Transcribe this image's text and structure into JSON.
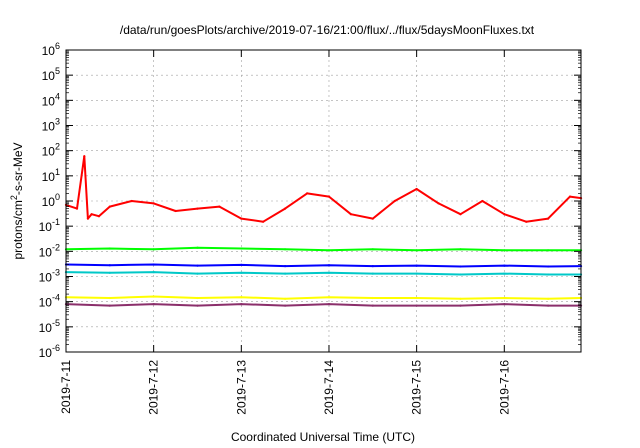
{
  "chart_data": {
    "type": "line",
    "title": "/data/run/goesPlots/archive/2019-07-16/21:00/flux/../flux/5daysMoonFluxes.txt",
    "xlabel": "Coordinated Universal Time (UTC)",
    "ylabel_main": "protons/cm",
    "ylabel_sup": "2",
    "ylabel_rest": "-s-sr-MeV",
    "y_scale": "log",
    "ylim": [
      1e-06,
      1000000.0
    ],
    "xlim": [
      "2019-07-11 00:00",
      "2019-07-16 21:00"
    ],
    "y_ticks": [
      {
        "exp": -6,
        "base": "10",
        "sup": "-6"
      },
      {
        "exp": -5,
        "base": "10",
        "sup": "-5"
      },
      {
        "exp": -4,
        "base": "10",
        "sup": "-4"
      },
      {
        "exp": -3,
        "base": "10",
        "sup": "-3"
      },
      {
        "exp": -2,
        "base": "10",
        "sup": "-2"
      },
      {
        "exp": -1,
        "base": "10",
        "sup": "-1"
      },
      {
        "exp": 0,
        "base": "10",
        "sup": "0"
      },
      {
        "exp": 1,
        "base": "10",
        "sup": "1"
      },
      {
        "exp": 2,
        "base": "10",
        "sup": "2"
      },
      {
        "exp": 3,
        "base": "10",
        "sup": "3"
      },
      {
        "exp": 4,
        "base": "10",
        "sup": "4"
      },
      {
        "exp": 5,
        "base": "10",
        "sup": "5"
      },
      {
        "exp": 6,
        "base": "10",
        "sup": "6"
      }
    ],
    "x_ticks": [
      {
        "x": "2019-07-11 00:00",
        "label": "2019-7-11"
      },
      {
        "x": "2019-07-12 00:00",
        "label": "2019-7-12"
      },
      {
        "x": "2019-07-13 00:00",
        "label": "2019-7-13"
      },
      {
        "x": "2019-07-14 00:00",
        "label": "2019-7-14"
      },
      {
        "x": "2019-07-15 00:00",
        "label": "2019-7-15"
      },
      {
        "x": "2019-07-16 00:00",
        "label": "2019-7-16"
      }
    ],
    "grid": true,
    "legend": "none",
    "series": [
      {
        "color": "#ff0000",
        "x": [
          "2019-07-11 00:00",
          "2019-07-11 03:00",
          "2019-07-11 05:00",
          "2019-07-11 06:00",
          "2019-07-11 07:00",
          "2019-07-11 09:00",
          "2019-07-11 12:00",
          "2019-07-11 18:00",
          "2019-07-12 00:00",
          "2019-07-12 06:00",
          "2019-07-12 12:00",
          "2019-07-12 18:00",
          "2019-07-13 00:00",
          "2019-07-13 06:00",
          "2019-07-13 12:00",
          "2019-07-13 18:00",
          "2019-07-14 00:00",
          "2019-07-14 06:00",
          "2019-07-14 12:00",
          "2019-07-14 18:00",
          "2019-07-15 00:00",
          "2019-07-15 06:00",
          "2019-07-15 12:00",
          "2019-07-15 18:00",
          "2019-07-16 00:00",
          "2019-07-16 06:00",
          "2019-07-16 12:00",
          "2019-07-16 18:00",
          "2019-07-16 21:00"
        ],
        "values": [
          0.7,
          0.5,
          60,
          0.2,
          0.3,
          0.25,
          0.6,
          1.0,
          0.8,
          0.4,
          0.5,
          0.6,
          0.2,
          0.15,
          0.5,
          2.0,
          1.5,
          0.3,
          0.2,
          1.0,
          3.0,
          0.8,
          0.3,
          1.0,
          0.3,
          0.15,
          0.2,
          1.5,
          1.3
        ]
      },
      {
        "color": "#00ff00",
        "x": [
          "2019-07-11 00:00",
          "2019-07-11 12:00",
          "2019-07-12 00:00",
          "2019-07-12 12:00",
          "2019-07-13 00:00",
          "2019-07-13 12:00",
          "2019-07-14 00:00",
          "2019-07-14 12:00",
          "2019-07-15 00:00",
          "2019-07-15 12:00",
          "2019-07-16 00:00",
          "2019-07-16 12:00",
          "2019-07-16 21:00"
        ],
        "values": [
          0.012,
          0.013,
          0.012,
          0.014,
          0.013,
          0.012,
          0.011,
          0.012,
          0.011,
          0.012,
          0.011,
          0.011,
          0.011
        ]
      },
      {
        "color": "#0000ff",
        "x": [
          "2019-07-11 00:00",
          "2019-07-11 12:00",
          "2019-07-12 00:00",
          "2019-07-12 12:00",
          "2019-07-13 00:00",
          "2019-07-13 12:00",
          "2019-07-14 00:00",
          "2019-07-14 12:00",
          "2019-07-15 00:00",
          "2019-07-15 12:00",
          "2019-07-16 00:00",
          "2019-07-16 12:00",
          "2019-07-16 21:00"
        ],
        "values": [
          0.003,
          0.0028,
          0.003,
          0.0027,
          0.0029,
          0.0026,
          0.0028,
          0.0026,
          0.0027,
          0.0025,
          0.0027,
          0.0025,
          0.0026
        ]
      },
      {
        "color": "#00c8c8",
        "x": [
          "2019-07-11 00:00",
          "2019-07-11 12:00",
          "2019-07-12 00:00",
          "2019-07-12 12:00",
          "2019-07-13 00:00",
          "2019-07-13 12:00",
          "2019-07-14 00:00",
          "2019-07-14 12:00",
          "2019-07-15 00:00",
          "2019-07-15 12:00",
          "2019-07-16 00:00",
          "2019-07-16 12:00",
          "2019-07-16 21:00"
        ],
        "values": [
          0.0015,
          0.0014,
          0.0015,
          0.0013,
          0.0014,
          0.0013,
          0.0014,
          0.0013,
          0.0013,
          0.0012,
          0.0013,
          0.0012,
          0.0012
        ]
      },
      {
        "color": "#ffff00",
        "x": [
          "2019-07-11 00:00",
          "2019-07-11 12:00",
          "2019-07-12 00:00",
          "2019-07-12 12:00",
          "2019-07-13 00:00",
          "2019-07-13 12:00",
          "2019-07-14 00:00",
          "2019-07-14 12:00",
          "2019-07-15 00:00",
          "2019-07-15 12:00",
          "2019-07-16 00:00",
          "2019-07-16 12:00",
          "2019-07-16 21:00"
        ],
        "values": [
          0.00015,
          0.00014,
          0.00016,
          0.00014,
          0.00015,
          0.00013,
          0.00015,
          0.00014,
          0.00014,
          0.00013,
          0.00014,
          0.00013,
          0.00014
        ]
      },
      {
        "color": "#8b2f6b",
        "x": [
          "2019-07-11 00:00",
          "2019-07-11 12:00",
          "2019-07-12 00:00",
          "2019-07-12 12:00",
          "2019-07-13 00:00",
          "2019-07-13 12:00",
          "2019-07-14 00:00",
          "2019-07-14 12:00",
          "2019-07-15 00:00",
          "2019-07-15 12:00",
          "2019-07-16 00:00",
          "2019-07-16 12:00",
          "2019-07-16 21:00"
        ],
        "values": [
          8e-05,
          7e-05,
          8e-05,
          7e-05,
          8e-05,
          7e-05,
          8e-05,
          7e-05,
          7e-05,
          7e-05,
          8e-05,
          7e-05,
          7e-05
        ]
      }
    ]
  }
}
